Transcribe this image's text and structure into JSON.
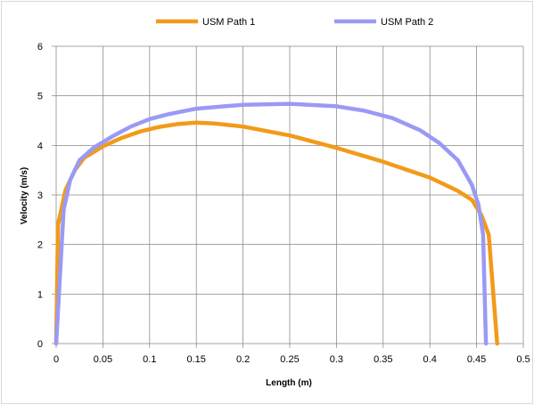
{
  "chart_data": {
    "type": "line",
    "title": "",
    "xlabel": "Length (m)",
    "ylabel": "Velocity (m/s)",
    "xlim": [
      0,
      0.5
    ],
    "ylim": [
      0,
      6
    ],
    "x_ticks": [
      "0",
      "0.05",
      "0.1",
      "0.15",
      "0.2",
      "0.25",
      "0.3",
      "0.35",
      "0.4",
      "0.45",
      "0.5"
    ],
    "y_ticks": [
      "0",
      "1",
      "2",
      "3",
      "4",
      "5",
      "6"
    ],
    "grid": true,
    "legend_position": "top",
    "series": [
      {
        "name": "USM Path 1",
        "color": "#f29a1a",
        "points": [
          [
            0,
            0
          ],
          [
            0.002,
            2.4
          ],
          [
            0.01,
            3.1
          ],
          [
            0.02,
            3.5
          ],
          [
            0.03,
            3.75
          ],
          [
            0.05,
            3.98
          ],
          [
            0.07,
            4.15
          ],
          [
            0.09,
            4.28
          ],
          [
            0.11,
            4.37
          ],
          [
            0.13,
            4.43
          ],
          [
            0.15,
            4.46
          ],
          [
            0.17,
            4.44
          ],
          [
            0.2,
            4.38
          ],
          [
            0.25,
            4.2
          ],
          [
            0.3,
            3.95
          ],
          [
            0.35,
            3.67
          ],
          [
            0.4,
            3.35
          ],
          [
            0.43,
            3.08
          ],
          [
            0.445,
            2.9
          ],
          [
            0.455,
            2.6
          ],
          [
            0.463,
            2.2
          ],
          [
            0.472,
            0
          ]
        ]
      },
      {
        "name": "USM Path 2",
        "color": "#9a9af5",
        "points": [
          [
            0,
            0
          ],
          [
            0.008,
            2.7
          ],
          [
            0.015,
            3.3
          ],
          [
            0.025,
            3.7
          ],
          [
            0.04,
            3.95
          ],
          [
            0.06,
            4.18
          ],
          [
            0.08,
            4.38
          ],
          [
            0.1,
            4.53
          ],
          [
            0.12,
            4.63
          ],
          [
            0.15,
            4.74
          ],
          [
            0.2,
            4.82
          ],
          [
            0.25,
            4.84
          ],
          [
            0.3,
            4.79
          ],
          [
            0.33,
            4.7
          ],
          [
            0.36,
            4.55
          ],
          [
            0.39,
            4.3
          ],
          [
            0.41,
            4.05
          ],
          [
            0.43,
            3.7
          ],
          [
            0.445,
            3.2
          ],
          [
            0.452,
            2.8
          ],
          [
            0.457,
            2.2
          ],
          [
            0.46,
            0
          ]
        ]
      }
    ]
  }
}
